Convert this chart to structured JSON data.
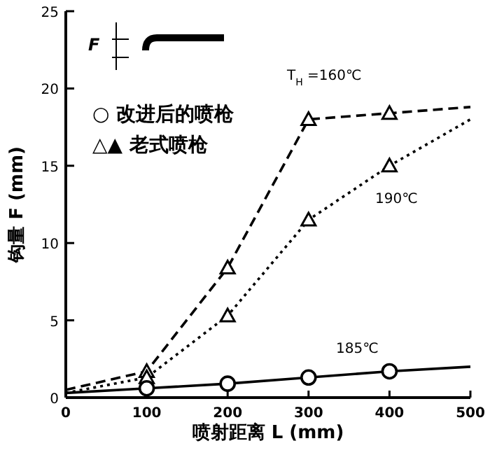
{
  "chart_data": {
    "type": "line",
    "xlabel": "喷射距离 L (mm)",
    "ylabel": "钩量 F (mm)",
    "x": [
      0,
      100,
      200,
      300,
      400,
      500
    ],
    "series": [
      {
        "color": "#000000",
        "values": [
          0.5,
          1.7,
          8.4,
          18.0,
          18.4,
          18.8
        ],
        "line_style": "dashed",
        "marker": "triangle"
      },
      {
        "color": "#000000",
        "values": [
          0.3,
          1.3,
          5.3,
          11.5,
          15.0,
          18.0
        ],
        "line_style": "dotted",
        "marker": "triangle"
      },
      {
        "color": "#000000",
        "values": [
          0.3,
          0.6,
          0.9,
          1.3,
          1.7,
          2.0
        ],
        "line_style": "solid",
        "marker": "circle"
      }
    ],
    "xlim": [
      0,
      500
    ],
    "xticks": [
      0,
      100,
      200,
      300,
      400,
      500
    ],
    "ylim": [
      0,
      25
    ],
    "yticks": [
      0,
      5,
      10,
      15,
      20,
      25
    ],
    "grid": false,
    "annotations": [
      "T$_{H}$ =160℃",
      "190℃",
      "185℃",
      "○ 改进后的喷枪",
      "△▲ 老式喷枪",
      "F"
    ]
  }
}
